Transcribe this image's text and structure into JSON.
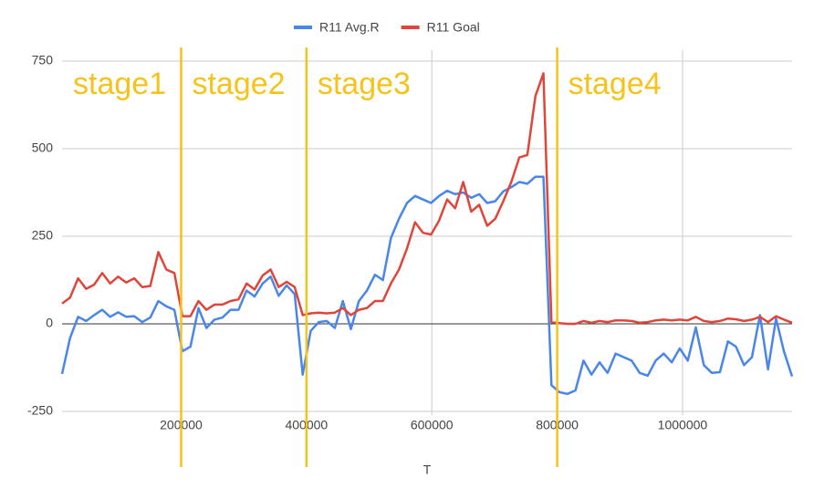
{
  "chart_data": {
    "type": "line",
    "x_label": "T",
    "x": [
      10000,
      22800,
      35600,
      48400,
      61200,
      74000,
      86800,
      99600,
      112400,
      125200,
      138000,
      150800,
      163600,
      176400,
      189200,
      202000,
      214800,
      227600,
      240400,
      253200,
      266000,
      278800,
      291600,
      304400,
      317200,
      330000,
      342800,
      355600,
      368400,
      381200,
      394000,
      406800,
      419600,
      432400,
      445200,
      458000,
      470800,
      483600,
      496400,
      509200,
      522000,
      534800,
      547600,
      560400,
      573200,
      586000,
      598800,
      611600,
      624400,
      637200,
      650000,
      662800,
      675600,
      688400,
      701200,
      714000,
      726800,
      739600,
      752400,
      765200,
      778000,
      790800,
      803600,
      816400,
      829200,
      842000,
      854800,
      867600,
      880400,
      893200,
      906000,
      918800,
      931600,
      944400,
      957200,
      970000,
      982800,
      995600,
      1008400,
      1021200,
      1034000,
      1046800,
      1059600,
      1072400,
      1085200,
      1098000,
      1110800,
      1123600,
      1136400,
      1149200,
      1162000,
      1174800
    ],
    "series": [
      {
        "name": "R11 Avg.R",
        "color": "#4a86e8",
        "values": [
          -143,
          -40,
          20,
          8,
          25,
          40,
          20,
          33,
          20,
          22,
          5,
          18,
          65,
          50,
          40,
          -78,
          -65,
          45,
          -12,
          12,
          18,
          40,
          40,
          95,
          78,
          115,
          135,
          80,
          110,
          85,
          -145,
          -20,
          5,
          8,
          -12,
          65,
          -15,
          65,
          95,
          140,
          125,
          245,
          300,
          345,
          365,
          355,
          345,
          365,
          380,
          370,
          375,
          360,
          370,
          345,
          350,
          378,
          390,
          405,
          400,
          420,
          420,
          -175,
          -195,
          -200,
          -190,
          -105,
          -145,
          -110,
          -140,
          -85,
          -95,
          -105,
          -140,
          -148,
          -105,
          -85,
          -110,
          -70,
          -105,
          -10,
          -118,
          -140,
          -138,
          -50,
          -65,
          -118,
          -95,
          25,
          -130,
          15,
          -80,
          -150
        ]
      },
      {
        "name": "R11 Goal",
        "color": "#e0453a",
        "values": [
          58,
          75,
          130,
          100,
          112,
          145,
          115,
          135,
          118,
          130,
          105,
          108,
          205,
          155,
          145,
          22,
          22,
          65,
          40,
          55,
          55,
          65,
          70,
          115,
          98,
          138,
          155,
          105,
          120,
          105,
          25,
          30,
          32,
          30,
          32,
          45,
          25,
          40,
          45,
          65,
          65,
          115,
          155,
          215,
          290,
          260,
          255,
          295,
          355,
          330,
          405,
          320,
          340,
          280,
          300,
          350,
          405,
          475,
          482,
          650,
          715,
          5,
          2,
          0,
          0,
          8,
          3,
          8,
          5,
          10,
          10,
          8,
          3,
          5,
          10,
          12,
          10,
          12,
          10,
          20,
          8,
          5,
          8,
          15,
          13,
          8,
          12,
          20,
          5,
          22,
          12,
          3
        ]
      }
    ],
    "xlim": [
      10000,
      1174800
    ],
    "xticks": [
      200000,
      400000,
      600000,
      800000,
      1000000
    ],
    "ylim": [
      -250,
      750
    ],
    "yticks": [
      -250,
      0,
      250,
      500,
      750
    ],
    "grid": true,
    "legend": "top",
    "stage_lines": [
      200000,
      400000,
      800000
    ],
    "stage_color": "#f7c21a",
    "stages": [
      "stage1",
      "stage2",
      "stage3",
      "stage4"
    ]
  }
}
